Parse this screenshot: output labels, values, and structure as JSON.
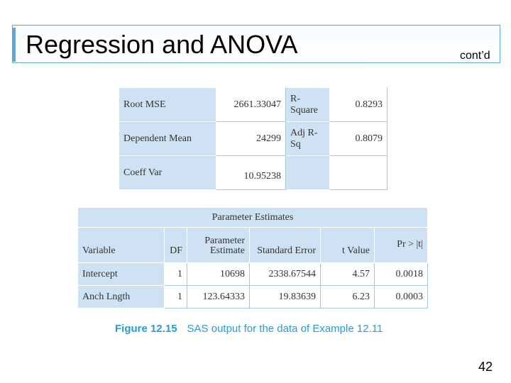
{
  "slide": {
    "title": "Regression and ANOVA",
    "subtitle_right": "cont’d",
    "page_number": "42"
  },
  "fit_stats": {
    "rows": [
      {
        "label": "Root MSE",
        "value": "2661.33047",
        "label2": "R-Square",
        "value2": "0.8293"
      },
      {
        "label": "Dependent Mean",
        "value": "24299",
        "label2": "Adj R-Sq",
        "value2": "0.8079"
      },
      {
        "label": "Coeff Var",
        "value": "10.95238",
        "label2": "",
        "value2": ""
      }
    ]
  },
  "param_table": {
    "caption": "Parameter Estimates",
    "headers": [
      "Variable",
      "DF",
      "Parameter Estimate",
      "Standard Error",
      "t Value",
      "Pr > |t|"
    ],
    "rows": [
      [
        "Intercept",
        "1",
        "10698",
        "2338.67544",
        "4.57",
        "0.0018"
      ],
      [
        "Anch Lngth",
        "1",
        "123.64333",
        "19.83639",
        "6.23",
        "0.0003"
      ]
    ]
  },
  "figure_caption": {
    "label": "Figure 12.15",
    "text": "SAS output for the data of Example 12.11"
  },
  "colors": {
    "accent": "#5aa9d8",
    "cell_fill": "#cfe2f3",
    "caption": "#2a9ad6"
  }
}
